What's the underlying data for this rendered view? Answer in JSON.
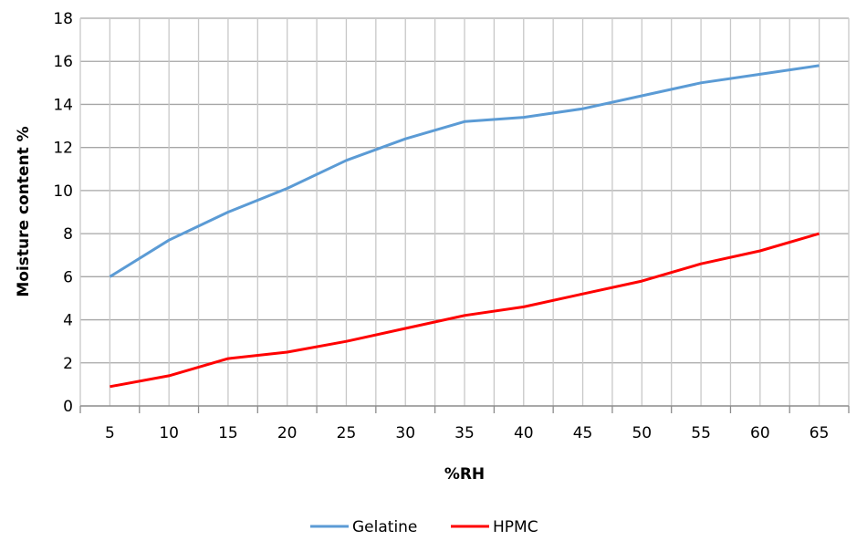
{
  "chart_data": {
    "type": "line",
    "title": "",
    "xlabel": "%RH",
    "ylabel": "Moisture content %",
    "categories": [
      "5",
      "10",
      "15",
      "20",
      "25",
      "30",
      "35",
      "40",
      "45",
      "50",
      "55",
      "60",
      "65"
    ],
    "x": [
      5,
      10,
      15,
      20,
      25,
      30,
      35,
      40,
      45,
      50,
      55,
      60,
      65
    ],
    "ylim": [
      0,
      18
    ],
    "yticks": [
      0,
      2,
      4,
      6,
      8,
      10,
      12,
      14,
      16,
      18
    ],
    "grid": true,
    "legend_position": "bottom",
    "series": [
      {
        "name": "Gelatine",
        "color": "#5b9bd5",
        "values": [
          6.0,
          7.7,
          9.0,
          10.1,
          11.4,
          12.4,
          13.2,
          13.4,
          13.8,
          14.4,
          15.0,
          15.4,
          15.8
        ]
      },
      {
        "name": "HPMC",
        "color": "#ff0000",
        "values": [
          0.9,
          1.4,
          2.2,
          2.5,
          3.0,
          3.6,
          4.2,
          4.6,
          5.2,
          5.8,
          6.6,
          7.2,
          8.0
        ]
      }
    ]
  },
  "legend": {
    "items": [
      {
        "label": "Gelatine",
        "color": "#5b9bd5"
      },
      {
        "label": "HPMC",
        "color": "#ff0000"
      }
    ]
  },
  "axes": {
    "x_title": "%RH",
    "y_title": "Moisture content %"
  }
}
